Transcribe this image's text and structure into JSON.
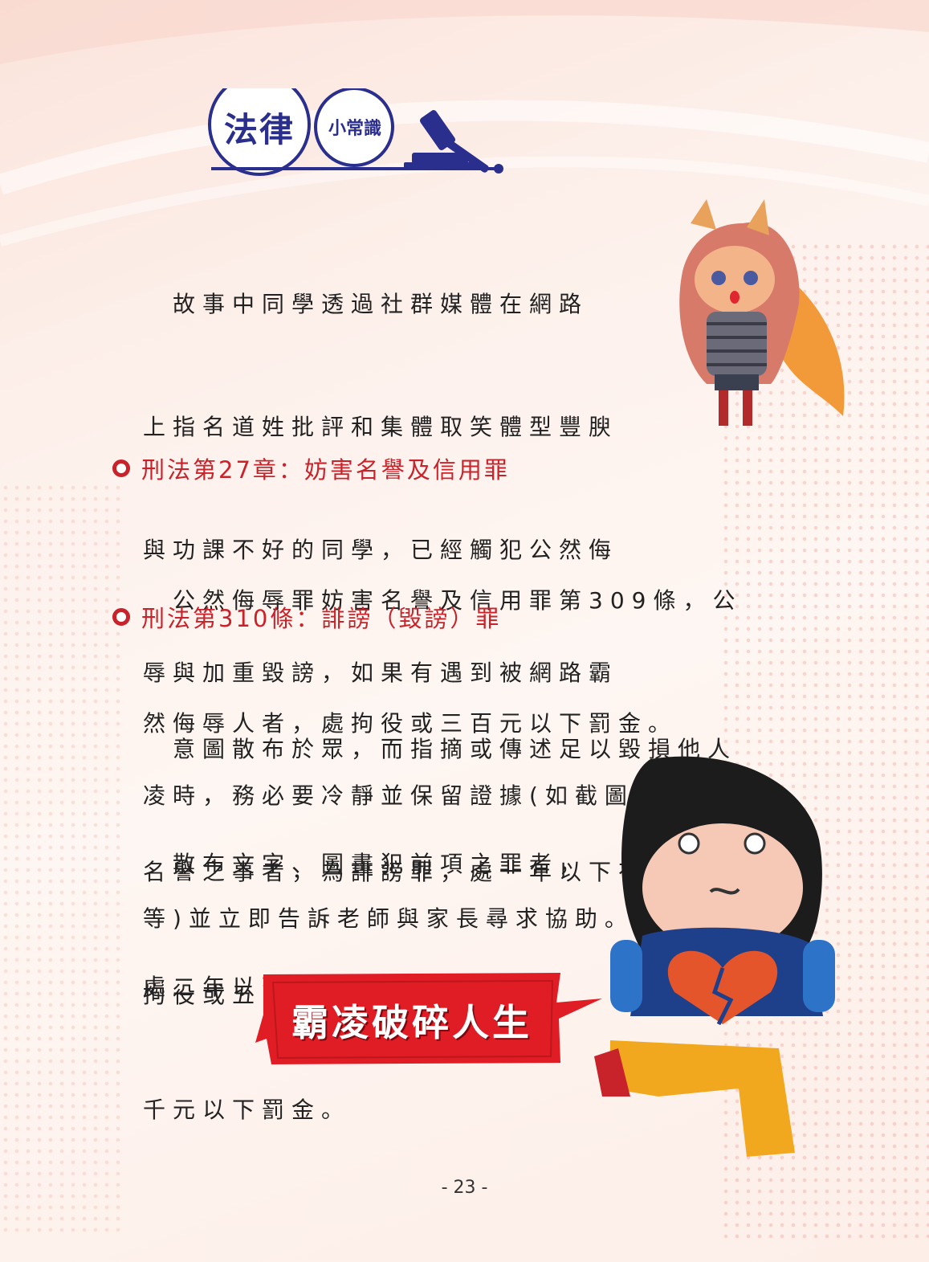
{
  "logo": {
    "big": "法律",
    "small": "小常識",
    "icon": "gavel-icon"
  },
  "intro": [
    "　故事中同學透過社群媒體在網路",
    "上指名道姓批評和集體取笑體型豐腴",
    "與功課不好的同學，已經觸犯公然侮",
    "辱與加重毀謗，如果有遇到被網路霸",
    "凌時，務必要冷靜並保留證據(如截圖",
    "等)並立即告訴老師與家長尋求協助。"
  ],
  "section1": {
    "heading": "刑法第27章：妨害名譽及信用罪",
    "lines": [
      "　公然侮辱罪妨害名譽及信用罪第309條，公",
      "然侮辱人者，處拘役或三百元以下罰金。"
    ]
  },
  "section2": {
    "heading": "刑法第310條：誹謗（毀謗）罪",
    "para1": [
      "　意圖散布於眾，而指摘或傳述足以毀損他人",
      "名譽之事者，為誹謗罪，處一年以下有期徒刑、",
      "拘役或五百元以下罰金。"
    ],
    "para2": [
      "　散布文字、圖畫犯前項之罪者，",
      "處二年以下有期徒刑、拘役或一",
      "千元以下罰金。"
    ]
  },
  "banner": "霸凌破碎人生",
  "page_number": "- 23 -",
  "colors": {
    "accent_red": "#c8232b",
    "logo_blue": "#2a2e8c"
  }
}
